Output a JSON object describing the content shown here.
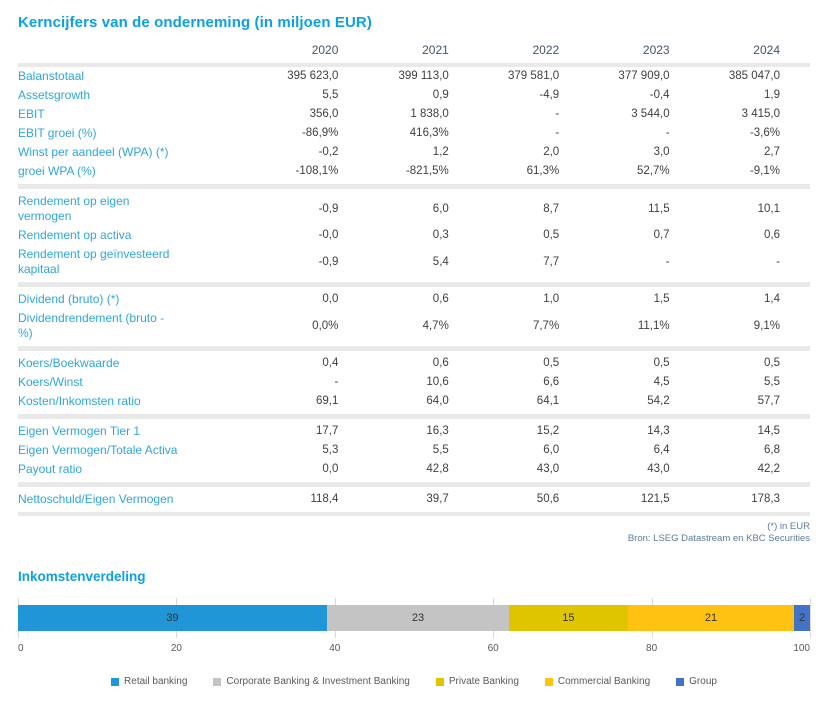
{
  "table": {
    "title": "Kerncijfers van de onderneming (in miljoen EUR)",
    "years": [
      "2020",
      "2021",
      "2022",
      "2023",
      "2024"
    ],
    "sections": [
      {
        "rows": [
          {
            "label": "Balanstotaal",
            "values": [
              "395 623,0",
              "399 113,0",
              "379 581,0",
              "377 909,0",
              "385 047,0"
            ]
          },
          {
            "label": "Assetsgrowth",
            "values": [
              "5,5",
              "0,9",
              "-4,9",
              "-0,4",
              "1,9"
            ]
          },
          {
            "label": "EBIT",
            "values": [
              "356,0",
              "1 838,0",
              "-",
              "3 544,0",
              "3 415,0"
            ]
          },
          {
            "label": "EBIT groei (%)",
            "values": [
              "-86,9%",
              "416,3%",
              "-",
              "-",
              "-3,6%"
            ]
          },
          {
            "label": "Winst per aandeel (WPA) (*)",
            "values": [
              "-0,2",
              "1,2",
              "2,0",
              "3,0",
              "2,7"
            ]
          },
          {
            "label": "groei WPA (%)",
            "values": [
              "-108,1%",
              "-821,5%",
              "61,3%",
              "52,7%",
              "-9,1%"
            ]
          }
        ]
      },
      {
        "rows": [
          {
            "label": "Rendement op eigen\nvermogen",
            "values": [
              "-0,9",
              "6,0",
              "8,7",
              "11,5",
              "10,1"
            ]
          },
          {
            "label": "Rendement op activa",
            "values": [
              "-0,0",
              "0,3",
              "0,5",
              "0,7",
              "0,6"
            ]
          },
          {
            "label": "Rendement op geïnvesteerd\nkapitaal",
            "values": [
              "-0,9",
              "5,4",
              "7,7",
              "-",
              "-"
            ]
          }
        ]
      },
      {
        "rows": [
          {
            "label": "Dividend (bruto) (*)",
            "values": [
              "0,0",
              "0,6",
              "1,0",
              "1,5",
              "1,4"
            ]
          },
          {
            "label": "Dividendrendement (bruto -\n%)",
            "values": [
              "0,0%",
              "4,7%",
              "7,7%",
              "11,1%",
              "9,1%"
            ]
          }
        ]
      },
      {
        "rows": [
          {
            "label": "Koers/Boekwaarde",
            "values": [
              "0,4",
              "0,6",
              "0,5",
              "0,5",
              "0,5"
            ]
          },
          {
            "label": "Koers/Winst",
            "values": [
              "-",
              "10,6",
              "6,6",
              "4,5",
              "5,5"
            ]
          },
          {
            "label": "Kosten/Inkomsten ratio",
            "values": [
              "69,1",
              "64,0",
              "64,1",
              "54,2",
              "57,7"
            ]
          }
        ]
      },
      {
        "rows": [
          {
            "label": "Eigen Vermogen Tier 1",
            "values": [
              "17,7",
              "16,3",
              "15,2",
              "14,3",
              "14,5"
            ]
          },
          {
            "label": "Eigen Vermogen/Totale Activa",
            "values": [
              "5,3",
              "5,5",
              "6,0",
              "6,4",
              "6,8"
            ]
          },
          {
            "label": "Payout ratio",
            "values": [
              "0,0",
              "42,8",
              "43,0",
              "43,0",
              "42,2"
            ]
          }
        ]
      },
      {
        "rows": [
          {
            "label": "Nettoschuld/Eigen Vermogen",
            "values": [
              "118,4",
              "39,7",
              "50,6",
              "121,5",
              "178,3"
            ]
          }
        ]
      }
    ],
    "footnote": "(*) in EUR",
    "source": "Bron: LSEG Datastream en KBC Securities"
  },
  "chart_data": {
    "type": "bar",
    "stacked": true,
    "orientation": "horizontal",
    "title": "Inkomstenverdeling",
    "xlim": [
      0,
      100
    ],
    "xticks": [
      "0",
      "20",
      "40",
      "60",
      "80",
      "100"
    ],
    "grid": true,
    "legend_position": "bottom",
    "series": [
      {
        "name": "Retail banking",
        "value": 39,
        "color": "#2196D6"
      },
      {
        "name": "Corporate Banking & Investment Banking",
        "value": 23,
        "color": "#C4C4C4"
      },
      {
        "name": "Private Banking",
        "value": 15,
        "color": "#DFC400"
      },
      {
        "name": "Commercial Banking",
        "value": 21,
        "color": "#FFC213"
      },
      {
        "name": "Group",
        "value": 2,
        "color": "#4472C4"
      }
    ]
  },
  "colors": {
    "title_blue": "#0BA1E2",
    "row_label_blue": "#2EA6DE",
    "year_header": "#44546A",
    "value_gray": "#404040",
    "separator_gray": "#E9E9E9",
    "footnote_blue": "#5C7D99",
    "gridline_gray": "#D9D9D9"
  }
}
